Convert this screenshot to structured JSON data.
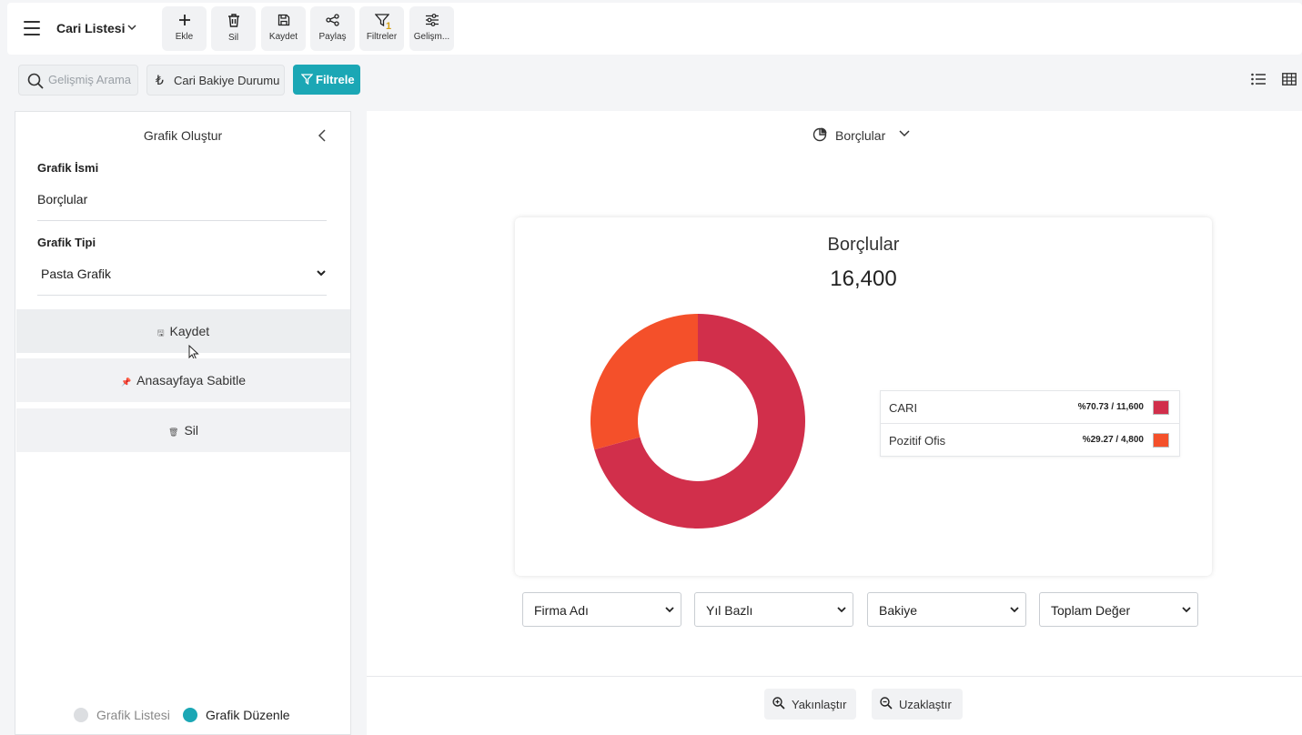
{
  "header": {
    "title": "Cari Listesi",
    "toolbar": [
      {
        "label": "Ekle",
        "icon": "plus-icon"
      },
      {
        "label": "Sil",
        "icon": "trash-icon"
      },
      {
        "label": "Kaydet",
        "icon": "save-icon"
      },
      {
        "label": "Paylaş",
        "icon": "share-icon"
      },
      {
        "label": "Filtreler",
        "icon": "filter-icon",
        "badge": "1"
      },
      {
        "label": "Gelişm...",
        "icon": "sliders-icon"
      }
    ]
  },
  "searchbar": {
    "placeholder": "Gelişmiş Arama",
    "bakiye_label": "Cari Bakiye Durumu",
    "bakiye_icon": "₺",
    "filter_label": "Filtrele",
    "filter_color": "#1ba7b5"
  },
  "left_panel": {
    "title": "Grafik Oluştur",
    "name_label": "Grafik İsmi",
    "name_value": "Borçlular",
    "type_label": "Grafik Tipi",
    "type_value": "Pasta Grafik",
    "actions": {
      "save": "Kaydet",
      "pin": "Anasayfaya Sabitle",
      "delete": "Sil"
    },
    "toggle": {
      "list_label": "Grafik Listesi",
      "edit_label": "Grafik Düzenle",
      "active_color": "#1ba7b5"
    }
  },
  "main": {
    "chart_selector": "Borçlular",
    "dropdowns": [
      "Firma Adı",
      "Yıl Bazlı",
      "Bakiye",
      "Toplam Değer"
    ],
    "zoom_in": "Yakınlaştır",
    "zoom_out": "Uzaklaştır"
  },
  "chart_data": {
    "type": "pie",
    "title": "Borçlular",
    "total": "16,400",
    "slices": [
      {
        "name": "CARI",
        "value": 11600,
        "label": "%70.73 / 11,600",
        "color": "#d12f4b"
      },
      {
        "name": "Pozitif Ofis",
        "value": 4800,
        "label": "%29.27 / 4,800",
        "color": "#f4502a"
      }
    ],
    "legend": "right"
  }
}
